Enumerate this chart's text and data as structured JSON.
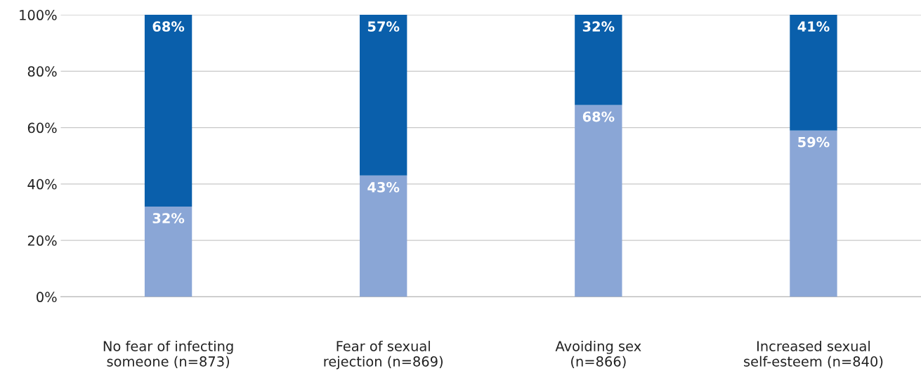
{
  "chart_data": {
    "type": "bar",
    "stacked": true,
    "categories": [
      "No fear of infecting\nsomeone (n=873)",
      "Fear of sexual\nrejection (n=869)",
      "Avoiding sex\n(n=866)",
      "Increased sexual\nself-esteem (n=840)"
    ],
    "series": [
      {
        "color": "#8aa6d6",
        "values": [
          32,
          43,
          68,
          59
        ],
        "value_labels": [
          "32%",
          "43%",
          "68%",
          "59%"
        ]
      },
      {
        "color": "#0a5fab",
        "values": [
          68,
          57,
          32,
          41
        ],
        "value_labels": [
          "68%",
          "57%",
          "32%",
          "41%"
        ]
      }
    ],
    "ylim": [
      0,
      100
    ],
    "yticks": [
      {
        "value": 0,
        "label": "0%"
      },
      {
        "value": 20,
        "label": "20%"
      },
      {
        "value": 40,
        "label": "40%"
      },
      {
        "value": 60,
        "label": "60%"
      },
      {
        "value": 80,
        "label": "80%"
      },
      {
        "value": 100,
        "label": "100%"
      }
    ],
    "grid": "y",
    "legend": false
  }
}
